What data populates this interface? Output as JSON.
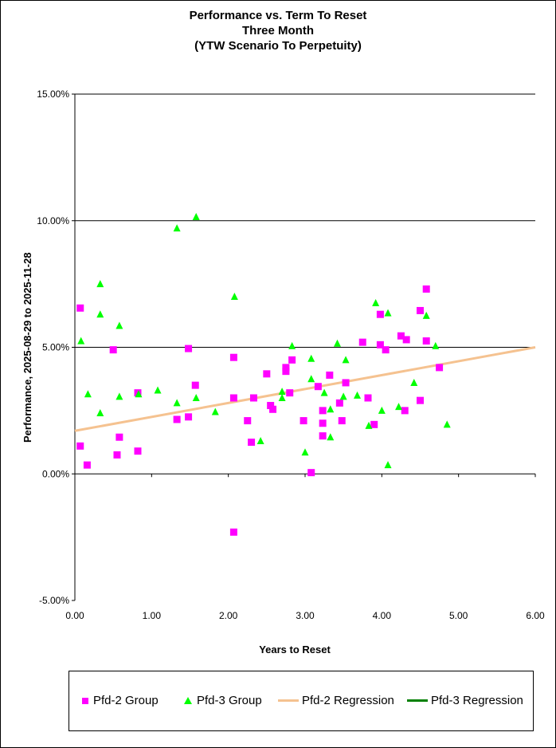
{
  "chart_data": {
    "type": "scatter",
    "title": [
      "Performance vs. Term To Reset",
      "Three Month",
      "(YTW Scenario To Perpetuity)"
    ],
    "xlabel": "Years to Reset",
    "ylabel": "Performance, 2025-08-29  to 2025-11-28",
    "xlim": [
      0,
      6
    ],
    "ylim": [
      -5,
      15
    ],
    "x_ticks": [
      "0.00",
      "1.00",
      "2.00",
      "3.00",
      "4.00",
      "5.00",
      "6.00"
    ],
    "y_ticks": [
      "15.00%",
      "10.00%",
      "5.00%",
      "0.00%",
      "-5.00%"
    ],
    "y_tick_values": [
      15,
      10,
      5,
      0,
      -5
    ],
    "gridlines_y": [
      5,
      10,
      15
    ],
    "series": [
      {
        "name": "Pfd-2 Group",
        "marker": "square",
        "color": "#ff00ff",
        "points": [
          [
            0.07,
            6.55
          ],
          [
            0.07,
            1.1
          ],
          [
            0.16,
            0.35
          ],
          [
            0.5,
            4.9
          ],
          [
            0.55,
            0.75
          ],
          [
            0.58,
            1.45
          ],
          [
            0.82,
            3.2
          ],
          [
            0.82,
            0.9
          ],
          [
            1.33,
            2.15
          ],
          [
            1.48,
            2.25
          ],
          [
            1.48,
            4.95
          ],
          [
            1.57,
            3.5
          ],
          [
            2.07,
            4.6
          ],
          [
            2.07,
            3.0
          ],
          [
            2.07,
            -2.3
          ],
          [
            2.25,
            2.1
          ],
          [
            2.3,
            1.25
          ],
          [
            2.33,
            3.0
          ],
          [
            2.5,
            3.95
          ],
          [
            2.55,
            2.7
          ],
          [
            2.58,
            2.55
          ],
          [
            2.75,
            4.2
          ],
          [
            2.75,
            4.05
          ],
          [
            2.8,
            3.2
          ],
          [
            2.83,
            4.5
          ],
          [
            2.98,
            2.1
          ],
          [
            3.08,
            0.05
          ],
          [
            3.17,
            3.45
          ],
          [
            3.23,
            2.5
          ],
          [
            3.23,
            2.0
          ],
          [
            3.23,
            1.5
          ],
          [
            3.32,
            3.9
          ],
          [
            3.45,
            2.8
          ],
          [
            3.48,
            2.1
          ],
          [
            3.53,
            3.6
          ],
          [
            3.75,
            5.2
          ],
          [
            3.82,
            3.0
          ],
          [
            3.9,
            1.95
          ],
          [
            3.98,
            6.3
          ],
          [
            3.98,
            5.1
          ],
          [
            4.05,
            4.9
          ],
          [
            4.25,
            5.45
          ],
          [
            4.32,
            5.3
          ],
          [
            4.3,
            2.5
          ],
          [
            4.5,
            6.45
          ],
          [
            4.5,
            2.9
          ],
          [
            4.58,
            7.3
          ],
          [
            4.58,
            5.25
          ],
          [
            4.75,
            4.2
          ]
        ]
      },
      {
        "name": "Pfd-3 Group",
        "marker": "triangle",
        "color": "#00ff00",
        "points": [
          [
            0.08,
            5.25
          ],
          [
            0.17,
            3.15
          ],
          [
            0.33,
            7.5
          ],
          [
            0.33,
            6.3
          ],
          [
            0.33,
            2.4
          ],
          [
            0.58,
            5.85
          ],
          [
            0.58,
            3.05
          ],
          [
            0.83,
            3.15
          ],
          [
            1.08,
            3.3
          ],
          [
            1.33,
            9.7
          ],
          [
            1.33,
            2.8
          ],
          [
            1.58,
            10.15
          ],
          [
            1.58,
            3.0
          ],
          [
            1.83,
            2.45
          ],
          [
            2.08,
            7.0
          ],
          [
            2.42,
            1.3
          ],
          [
            2.7,
            3.25
          ],
          [
            2.7,
            3.0
          ],
          [
            2.83,
            5.05
          ],
          [
            3.0,
            0.85
          ],
          [
            3.08,
            4.55
          ],
          [
            3.08,
            3.75
          ],
          [
            3.25,
            3.2
          ],
          [
            3.33,
            2.55
          ],
          [
            3.33,
            1.45
          ],
          [
            3.42,
            5.15
          ],
          [
            3.5,
            3.05
          ],
          [
            3.53,
            4.5
          ],
          [
            3.68,
            3.1
          ],
          [
            3.83,
            1.9
          ],
          [
            3.92,
            6.75
          ],
          [
            4.0,
            2.5
          ],
          [
            4.08,
            6.35
          ],
          [
            4.08,
            0.35
          ],
          [
            4.22,
            2.65
          ],
          [
            4.42,
            3.6
          ],
          [
            4.58,
            6.25
          ],
          [
            4.7,
            5.05
          ],
          [
            4.85,
            1.95
          ]
        ]
      },
      {
        "name": "Pfd-2 Regression",
        "type": "line",
        "color": "#f5c290",
        "points": [
          [
            0.0,
            1.7
          ],
          [
            6.0,
            5.0
          ]
        ]
      },
      {
        "name": "Pfd-3 Regression",
        "type": "line",
        "color": "#008000",
        "points": []
      }
    ],
    "legend_position": "bottom"
  }
}
